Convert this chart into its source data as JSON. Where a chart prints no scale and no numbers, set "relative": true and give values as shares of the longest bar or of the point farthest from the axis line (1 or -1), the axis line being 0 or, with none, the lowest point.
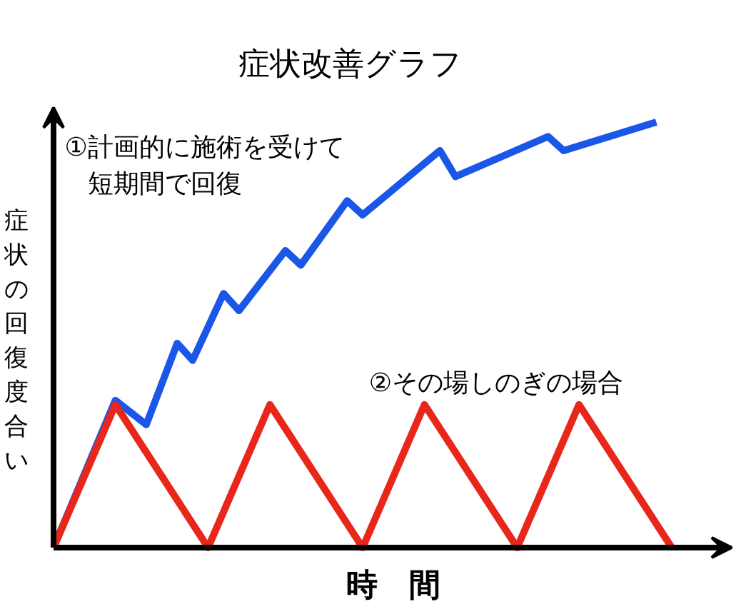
{
  "chart_data": {
    "type": "line",
    "relative": true,
    "title": "症状改善グラフ",
    "xlabel": "時　間",
    "ylabel": "症状の回復度合い",
    "categories": [
      null,
      null,
      null,
      null,
      null,
      null,
      null,
      null,
      null,
      null,
      null,
      null,
      null,
      null,
      null,
      null,
      null,
      null,
      null,
      null,
      null,
      null,
      null,
      null,
      null,
      null,
      null,
      null,
      null,
      null,
      null,
      null,
      null,
      null,
      null,
      null,
      null,
      null,
      null,
      null,
      null
    ],
    "annotations": [
      "①計画的に施術を受けて",
      "短期間で回復",
      "②その場しのぎの場合"
    ],
    "series": [
      {
        "color": "#1a56e8",
        "values": [
          0,
          null,
          null,
          null,
          0.346,
          null,
          0.289,
          null,
          0.48,
          0.44,
          null,
          0.597,
          0.557,
          null,
          null,
          0.698,
          0.664,
          null,
          null,
          0.815,
          0.782,
          null,
          null,
          null,
          null,
          0.933,
          0.872,
          null,
          null,
          null,
          null,
          null,
          0.966,
          0.933,
          null,
          null,
          null,
          null,
          null,
          1,
          null
        ]
      },
      {
        "color": "#e8261a",
        "values": [
          0,
          null,
          null,
          null,
          0.336,
          null,
          null,
          null,
          null,
          null,
          0,
          null,
          null,
          null,
          0.336,
          null,
          null,
          null,
          null,
          null,
          0,
          null,
          null,
          null,
          0.336,
          null,
          null,
          null,
          null,
          null,
          0,
          null,
          null,
          null,
          0.336,
          null,
          null,
          null,
          null,
          null,
          0
        ]
      }
    ],
    "marker": "none",
    "line_style": "solid"
  }
}
